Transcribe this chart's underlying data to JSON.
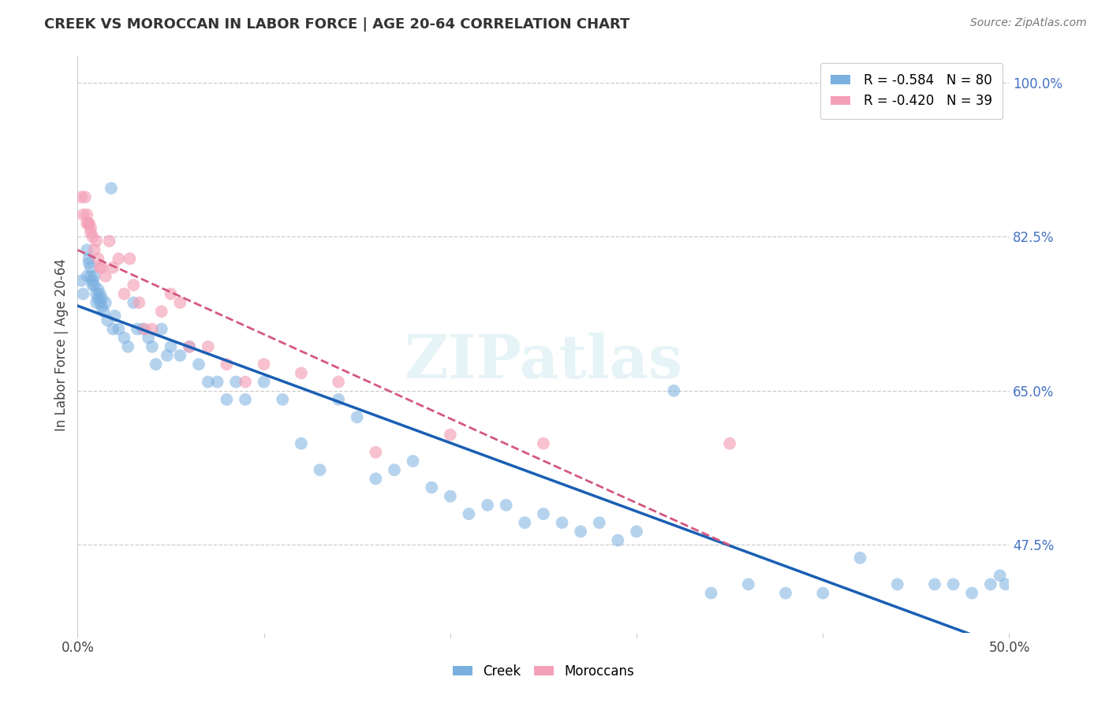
{
  "title": "CREEK VS MOROCCAN IN LABOR FORCE | AGE 20-64 CORRELATION CHART",
  "source": "Source: ZipAtlas.com",
  "ylabel_label": "In Labor Force | Age 20-64",
  "watermark": "ZIPatlas",
  "xmin": 0.0,
  "xmax": 0.5,
  "ymin": 0.375,
  "ymax": 1.03,
  "creek_color": "#7ab0e0",
  "moroccan_color": "#f4a0b8",
  "creek_line_color": "#1a5fb4",
  "moroccan_line_color": "#d45880",
  "yticks": [
    1.0,
    0.825,
    0.65,
    0.475
  ],
  "ytick_labels": [
    "100.0%",
    "82.5%",
    "65.0%",
    "47.5%"
  ],
  "xticks": [
    0.0,
    0.1,
    0.2,
    0.3,
    0.4,
    0.5
  ],
  "xtick_labels": [
    "0.0%",
    "",
    "",
    "",
    "",
    "50.0%"
  ],
  "creek_x": [
    0.002,
    0.003,
    0.005,
    0.005,
    0.006,
    0.006,
    0.007,
    0.007,
    0.008,
    0.008,
    0.009,
    0.009,
    0.01,
    0.01,
    0.011,
    0.011,
    0.012,
    0.012,
    0.013,
    0.013,
    0.014,
    0.015,
    0.016,
    0.018,
    0.019,
    0.02,
    0.022,
    0.025,
    0.027,
    0.03,
    0.032,
    0.035,
    0.038,
    0.04,
    0.042,
    0.045,
    0.048,
    0.05,
    0.055,
    0.06,
    0.065,
    0.07,
    0.075,
    0.08,
    0.085,
    0.09,
    0.1,
    0.11,
    0.12,
    0.13,
    0.14,
    0.15,
    0.16,
    0.17,
    0.18,
    0.19,
    0.2,
    0.21,
    0.22,
    0.23,
    0.24,
    0.25,
    0.26,
    0.27,
    0.28,
    0.29,
    0.3,
    0.32,
    0.34,
    0.36,
    0.38,
    0.4,
    0.42,
    0.44,
    0.46,
    0.47,
    0.48,
    0.49,
    0.495,
    0.498
  ],
  "creek_y": [
    0.775,
    0.76,
    0.81,
    0.78,
    0.8,
    0.795,
    0.79,
    0.78,
    0.775,
    0.77,
    0.78,
    0.77,
    0.76,
    0.75,
    0.755,
    0.765,
    0.76,
    0.75,
    0.745,
    0.755,
    0.74,
    0.75,
    0.73,
    0.88,
    0.72,
    0.735,
    0.72,
    0.71,
    0.7,
    0.75,
    0.72,
    0.72,
    0.71,
    0.7,
    0.68,
    0.72,
    0.69,
    0.7,
    0.69,
    0.7,
    0.68,
    0.66,
    0.66,
    0.64,
    0.66,
    0.64,
    0.66,
    0.64,
    0.59,
    0.56,
    0.64,
    0.62,
    0.55,
    0.56,
    0.57,
    0.54,
    0.53,
    0.51,
    0.52,
    0.52,
    0.5,
    0.51,
    0.5,
    0.49,
    0.5,
    0.48,
    0.49,
    0.65,
    0.42,
    0.43,
    0.42,
    0.42,
    0.46,
    0.43,
    0.43,
    0.43,
    0.42,
    0.43,
    0.44,
    0.43
  ],
  "moroccan_x": [
    0.002,
    0.003,
    0.004,
    0.005,
    0.005,
    0.006,
    0.006,
    0.007,
    0.007,
    0.008,
    0.009,
    0.01,
    0.011,
    0.012,
    0.013,
    0.015,
    0.017,
    0.019,
    0.022,
    0.025,
    0.028,
    0.03,
    0.033,
    0.036,
    0.04,
    0.045,
    0.05,
    0.055,
    0.06,
    0.07,
    0.08,
    0.09,
    0.1,
    0.12,
    0.14,
    0.16,
    0.2,
    0.25,
    0.35
  ],
  "moroccan_y": [
    0.87,
    0.85,
    0.87,
    0.84,
    0.85,
    0.84,
    0.84,
    0.835,
    0.83,
    0.825,
    0.81,
    0.82,
    0.8,
    0.79,
    0.79,
    0.78,
    0.82,
    0.79,
    0.8,
    0.76,
    0.8,
    0.77,
    0.75,
    0.72,
    0.72,
    0.74,
    0.76,
    0.75,
    0.7,
    0.7,
    0.68,
    0.66,
    0.68,
    0.67,
    0.66,
    0.58,
    0.6,
    0.59,
    0.59
  ]
}
